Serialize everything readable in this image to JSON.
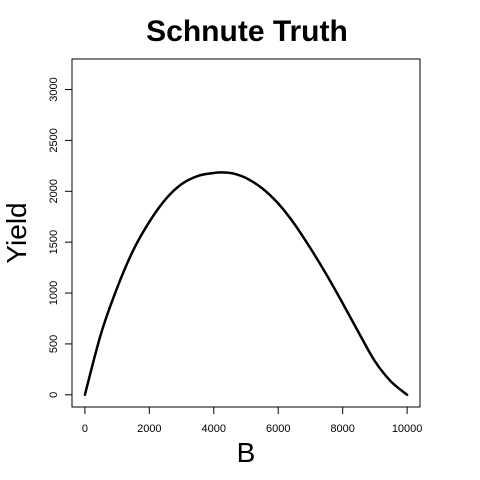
{
  "chart_data": {
    "type": "line",
    "title": "Schnute Truth",
    "xlabel": "B",
    "ylabel": "Yield",
    "xlim": [
      -400,
      10400
    ],
    "ylim": [
      -120,
      3300
    ],
    "x_ticks": [
      0,
      2000,
      4000,
      6000,
      8000,
      10000
    ],
    "x_tick_labels": [
      "0",
      "2000",
      "4000",
      "6000",
      "8000",
      "10000"
    ],
    "y_ticks": [
      0,
      500,
      1000,
      1500,
      2000,
      2500,
      3000
    ],
    "y_tick_labels": [
      "0",
      "500",
      "1000",
      "1500",
      "2000",
      "2500",
      "3000"
    ],
    "grid": false,
    "series": [
      {
        "color": "#000000",
        "x": [
          0,
          500,
          1000,
          1500,
          2000,
          2500,
          3000,
          3500,
          4000,
          4300,
          4600,
          5000,
          5500,
          6000,
          6500,
          7000,
          7500,
          8000,
          8500,
          9000,
          9500,
          10000
        ],
        "y": [
          0,
          600,
          1050,
          1420,
          1700,
          1920,
          2070,
          2150,
          2180,
          2185,
          2175,
          2130,
          2030,
          1880,
          1680,
          1440,
          1180,
          900,
          610,
          330,
          130,
          0
        ]
      }
    ]
  }
}
